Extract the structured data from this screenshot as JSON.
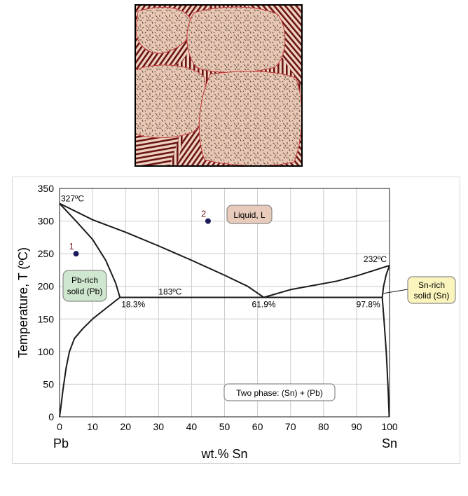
{
  "micrograph": {
    "colors": {
      "grain": "#e8c7b4",
      "boundary": "#c23a3a",
      "lamella_dark": "#6a1414",
      "lamella_light": "#efd3c2",
      "frame": "#000000"
    }
  },
  "chart_data": {
    "type": "line",
    "title": "",
    "xlabel": "wt.% Sn",
    "ylabel": "Temperature, T  (ºC)",
    "xlim": [
      0,
      100
    ],
    "ylim": [
      0,
      350
    ],
    "xticks": [
      "0",
      "10",
      "20",
      "30",
      "40",
      "50",
      "60",
      "70",
      "80",
      "90",
      "100"
    ],
    "yticks": [
      "0",
      "50",
      "100",
      "150",
      "200",
      "250",
      "300",
      "350"
    ],
    "grid": true,
    "x_end_labels": {
      "left": "Pb",
      "right": "Sn"
    },
    "series": [
      {
        "role": "liquidus-pb-side",
        "x": [
          0,
          10,
          20,
          30,
          40,
          50,
          57,
          61.9
        ],
        "y": [
          327,
          302,
          283,
          262,
          240,
          217,
          200,
          183
        ]
      },
      {
        "role": "liquidus-sn-side",
        "x": [
          61.9,
          70,
          84,
          90,
          95,
          100
        ],
        "y": [
          183,
          195,
          208,
          216,
          224,
          232
        ]
      },
      {
        "role": "solidus-pb",
        "x": [
          0,
          5,
          10,
          14,
          17,
          18.3
        ],
        "y": [
          327,
          300,
          272,
          240,
          205,
          183
        ]
      },
      {
        "role": "solvus-pb",
        "x": [
          0,
          0.4,
          1,
          2,
          3,
          4.5,
          7,
          10,
          14,
          18.3
        ],
        "y": [
          0,
          15,
          40,
          75,
          100,
          120,
          135,
          150,
          166,
          183
        ]
      },
      {
        "role": "eutectic-isotherm",
        "x": [
          18.3,
          97.8
        ],
        "y": [
          183,
          183
        ]
      },
      {
        "role": "solidus-sn",
        "x": [
          97.8,
          98.2,
          99,
          100
        ],
        "y": [
          183,
          200,
          218,
          232
        ]
      },
      {
        "role": "solvus-sn",
        "x": [
          97.8,
          98.3,
          99,
          99.6,
          99.9
        ],
        "y": [
          183,
          150,
          100,
          40,
          0
        ]
      }
    ],
    "points": [
      {
        "label": "1",
        "x": 5,
        "y": 250
      },
      {
        "label": "2",
        "x": 45,
        "y": 300
      }
    ],
    "annotations": {
      "t_pb_melt": "327ºC",
      "t_sn_melt": "232ºC",
      "t_eutectic": "183ºC",
      "c_pb_solid": "18.3%",
      "c_eutectic": "61.9%",
      "c_sn_solid": "97.8%"
    },
    "region_labels": {
      "liquid": "Liquid, L",
      "pb_rich": [
        "Pb-rich",
        "solid (Pb)"
      ],
      "sn_rich": [
        "Sn-rich",
        "solid (Sn)"
      ],
      "two_phase": "Two phase: (Sn) + (Pb)"
    },
    "colors": {
      "curve": "#1a1a1a",
      "grid": "#cccccc",
      "point": "#1c1a5c",
      "point_label": "#7a2222",
      "liquid_box": "#e8cbbb",
      "pb_box": "#cfe6cf",
      "sn_box": "#fbf5bd",
      "two_phase_box": "#ffffff",
      "box_border": "#8a8a8a"
    }
  }
}
